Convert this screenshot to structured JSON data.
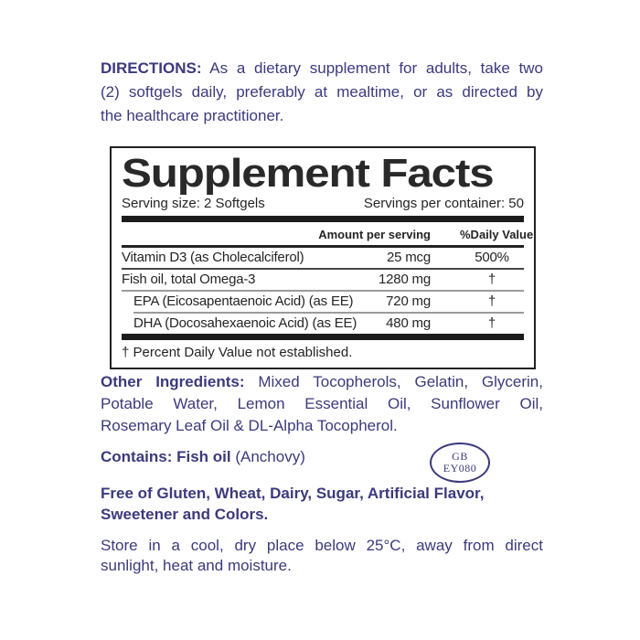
{
  "colors": {
    "ink_navy": "#3b3a7c",
    "ink_table": "#242424",
    "separator_gray": "#9b9b9b"
  },
  "directions": {
    "label": "DIRECTIONS:",
    "line1_rest": "As a dietary supplement for adults, take two",
    "line2": "(2) softgels daily, preferably at mealtime, or as directed by",
    "line3": "the healthcare practitioner."
  },
  "supplement_facts": {
    "title": "Supplement Facts",
    "serving_size": "Serving size: 2 Softgels",
    "servings_per_container": "Servings per container: 50",
    "columns": {
      "amount": "Amount per serving",
      "daily_value": "%Daily Value"
    },
    "rows": [
      {
        "name": "Vitamin D3 (as Cholecalciferol)",
        "amount": "25 mcg",
        "daily_value": "500%",
        "indent": false
      },
      {
        "name": "Fish oil, total Omega-3",
        "amount": "1280 mg",
        "daily_value": "†",
        "indent": false
      },
      {
        "name": "EPA (Eicosapentaenoic Acid) (as EE)",
        "amount": "720 mg",
        "daily_value": "†",
        "indent": true
      },
      {
        "name": "DHA (Docosahexaenoic Acid) (as EE)",
        "amount": "480 mg",
        "daily_value": "†",
        "indent": true
      }
    ],
    "footnote": "† Percent Daily Value not established."
  },
  "other_ingredients": {
    "label": "Other Ingredients:",
    "line1_rest": "Mixed Tocopherols, Gelatin, Glycerin,",
    "line2": "Potable Water, Lemon Essential Oil, Sunflower Oil,",
    "line3": "Rosemary Leaf Oil & DL-Alpha Tocopherol."
  },
  "contains": {
    "label": "Contains: Fish oil",
    "rest": "(Anchovy)"
  },
  "stamp": {
    "line1": "GB",
    "line2": "EY080"
  },
  "free_of": {
    "line1": "Free of Gluten, Wheat, Dairy, Sugar, Artificial Flavor,",
    "line2": "Sweetener and Colors."
  },
  "storage": {
    "line1": "Store in a cool, dry place below 25°C, away from direct",
    "line2": "sunlight, heat and moisture."
  }
}
